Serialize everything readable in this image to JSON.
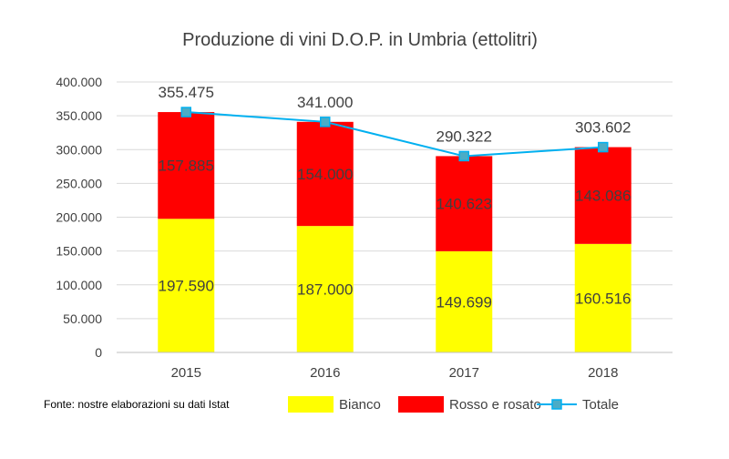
{
  "chart_data": {
    "type": "bar",
    "stacked": true,
    "title": "Produzione di vini D.O.P. in Umbria (ettolitri)",
    "categories": [
      "2015",
      "2016",
      "2017",
      "2018"
    ],
    "series": [
      {
        "name": "Bianco",
        "kind": "bar",
        "color": "#FFFF00",
        "values": [
          197590,
          187000,
          149699,
          160516
        ],
        "labels": [
          "197.590",
          "187.000",
          "149.699",
          "160.516"
        ]
      },
      {
        "name": "Rosso e rosato",
        "kind": "bar",
        "color": "#FF0000",
        "values": [
          157885,
          154000,
          140623,
          143086
        ],
        "labels": [
          "157.885",
          "154.000",
          "140.623",
          "143.086"
        ]
      },
      {
        "name": "Totale",
        "kind": "line",
        "color": "#00B0F0",
        "marker_color": "#4BACC6",
        "values": [
          355475,
          341000,
          290322,
          303602
        ],
        "labels": [
          "355.475",
          "341.000",
          "290.322",
          "303.602"
        ]
      }
    ],
    "ylim": [
      0,
      400000
    ],
    "yticks": [
      {
        "value": 0,
        "label": "0"
      },
      {
        "value": 50000,
        "label": "50.000"
      },
      {
        "value": 100000,
        "label": "100.000"
      },
      {
        "value": 150000,
        "label": "150.000"
      },
      {
        "value": 200000,
        "label": "200.000"
      },
      {
        "value": 250000,
        "label": "250.000"
      },
      {
        "value": 300000,
        "label": "300.000"
      },
      {
        "value": 350000,
        "label": "350.000"
      },
      {
        "value": 400000,
        "label": "400.000"
      }
    ],
    "grid": true,
    "legend_position": "bottom-right",
    "source_note": "Fonte: nostre elaborazioni su dati Istat"
  }
}
